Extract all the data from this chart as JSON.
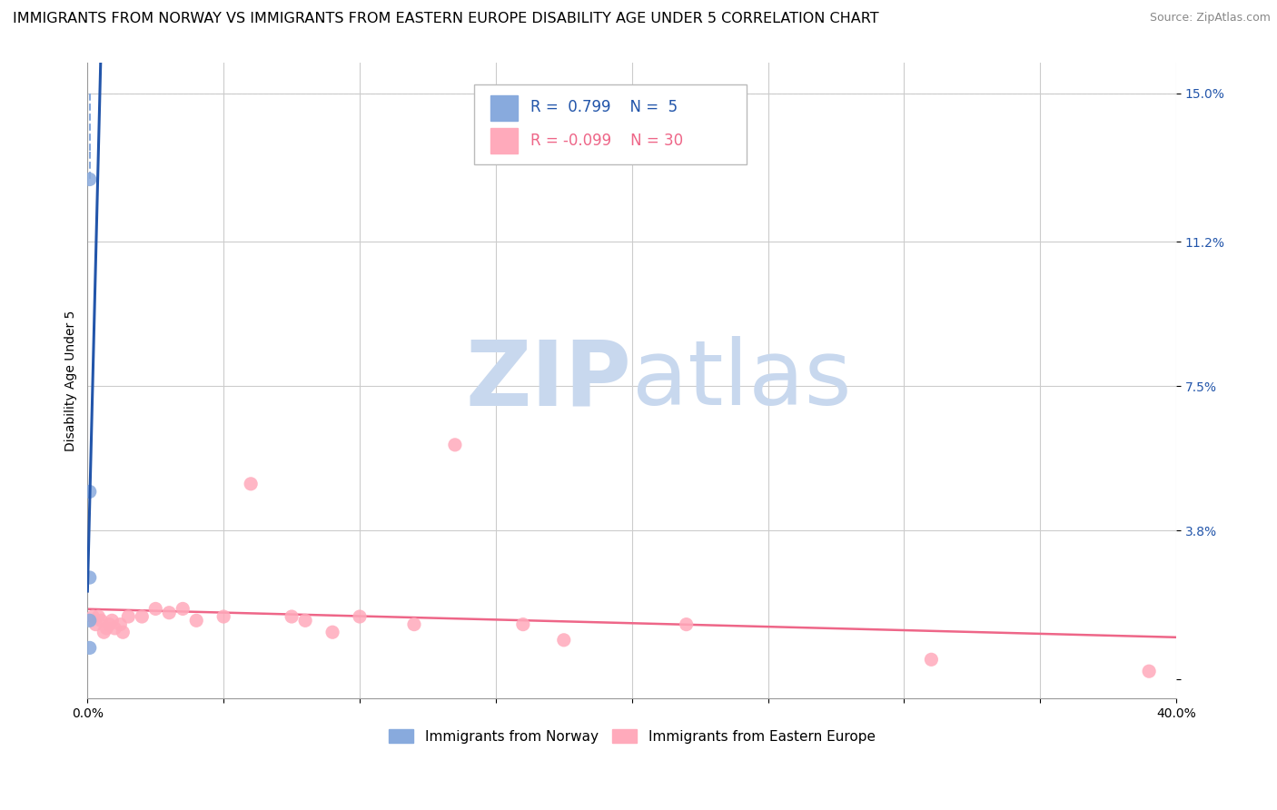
{
  "title": "IMMIGRANTS FROM NORWAY VS IMMIGRANTS FROM EASTERN EUROPE DISABILITY AGE UNDER 5 CORRELATION CHART",
  "source": "Source: ZipAtlas.com",
  "ylabel": "Disability Age Under 5",
  "xlim": [
    0.0,
    0.4
  ],
  "ylim": [
    -0.005,
    0.158
  ],
  "yticks": [
    0.0,
    0.038,
    0.075,
    0.112,
    0.15
  ],
  "ytick_labels": [
    "",
    "3.8%",
    "7.5%",
    "11.2%",
    "15.0%"
  ],
  "xticks": [
    0.0,
    0.05,
    0.1,
    0.15,
    0.2,
    0.25,
    0.3,
    0.35,
    0.4
  ],
  "xtick_labels": [
    "0.0%",
    "",
    "",
    "",
    "",
    "",
    "",
    "",
    "40.0%"
  ],
  "norway_color": "#88aadd",
  "norway_line_color": "#2255aa",
  "eastern_color": "#ffaabb",
  "eastern_line_color": "#ee6688",
  "norway_R": 0.799,
  "norway_N": 5,
  "eastern_R": -0.099,
  "eastern_N": 30,
  "norway_scatter_x": [
    0.0008,
    0.0008,
    0.0008,
    0.0008,
    0.0008
  ],
  "norway_scatter_y": [
    0.128,
    0.048,
    0.026,
    0.015,
    0.008
  ],
  "eastern_scatter_x": [
    0.002,
    0.003,
    0.004,
    0.005,
    0.006,
    0.007,
    0.008,
    0.009,
    0.01,
    0.012,
    0.013,
    0.015,
    0.02,
    0.025,
    0.03,
    0.035,
    0.04,
    0.05,
    0.06,
    0.075,
    0.08,
    0.09,
    0.1,
    0.12,
    0.135,
    0.16,
    0.175,
    0.22,
    0.31,
    0.39
  ],
  "eastern_scatter_y": [
    0.016,
    0.014,
    0.016,
    0.015,
    0.012,
    0.013,
    0.014,
    0.015,
    0.013,
    0.014,
    0.012,
    0.016,
    0.016,
    0.018,
    0.017,
    0.018,
    0.015,
    0.016,
    0.05,
    0.016,
    0.015,
    0.012,
    0.016,
    0.014,
    0.06,
    0.014,
    0.01,
    0.014,
    0.005,
    0.002
  ],
  "watermark_zip": "ZIP",
  "watermark_atlas": "atlas",
  "watermark_color": "#c8d8ee",
  "background_color": "#ffffff",
  "grid_color": "#cccccc",
  "grid_dash_color": "#cccccc",
  "title_fontsize": 11.5,
  "axis_label_fontsize": 10,
  "tick_fontsize": 10,
  "legend_fontsize": 12,
  "scatter_size": 120
}
